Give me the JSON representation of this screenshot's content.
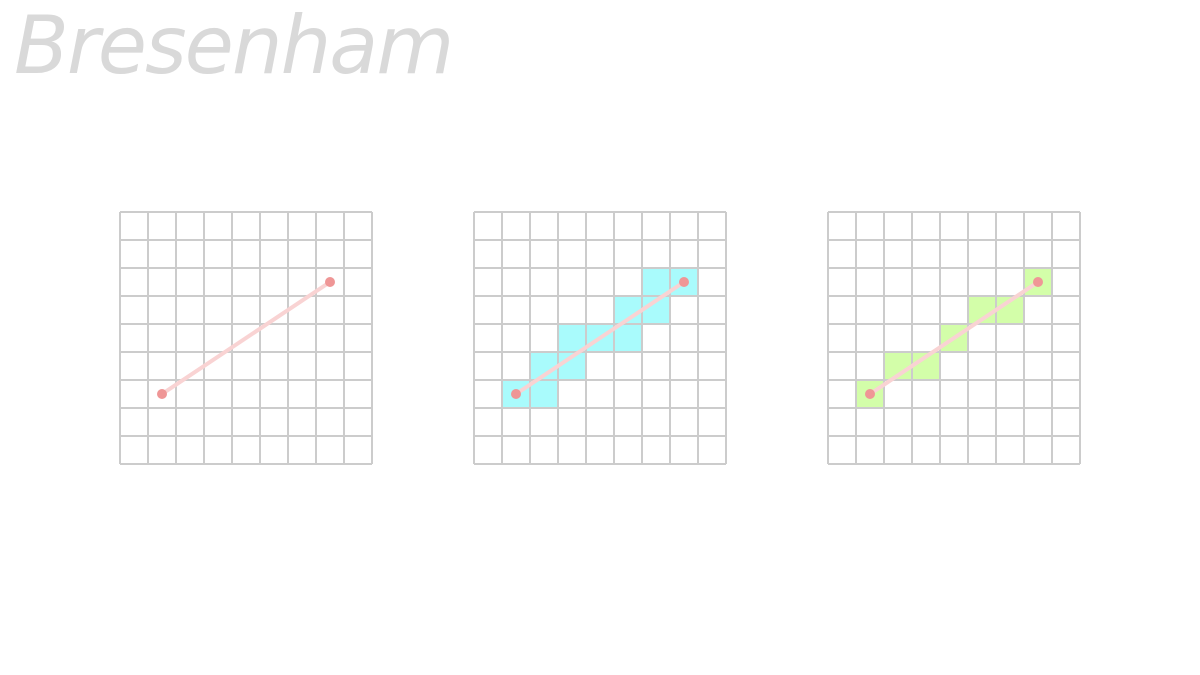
{
  "header": {
    "title": "Bresenham",
    "subtitle": ""
  },
  "grid": {
    "columns": 9,
    "rows": 9,
    "line_color": "#cccccc"
  },
  "line_segment": {
    "start_cell": [
      1,
      6
    ],
    "end_cell": [
      7,
      2
    ],
    "line_color": "#f9d3d3",
    "endpoint_color": "#ef9696"
  },
  "panels": [
    {
      "id": "line-only",
      "fill_color": "",
      "filled_cells": []
    },
    {
      "id": "supercover",
      "fill_color": "#a9fbfc",
      "filled_cells": [
        [
          1,
          6
        ],
        [
          2,
          6
        ],
        [
          2,
          5
        ],
        [
          3,
          5
        ],
        [
          3,
          4
        ],
        [
          4,
          4
        ],
        [
          5,
          4
        ],
        [
          5,
          3
        ],
        [
          6,
          3
        ],
        [
          6,
          2
        ],
        [
          7,
          2
        ]
      ]
    },
    {
      "id": "bresenham",
      "fill_color": "#d3fea9",
      "filled_cells": [
        [
          1,
          6
        ],
        [
          2,
          5
        ],
        [
          3,
          5
        ],
        [
          4,
          4
        ],
        [
          5,
          3
        ],
        [
          6,
          3
        ],
        [
          7,
          2
        ]
      ]
    }
  ]
}
